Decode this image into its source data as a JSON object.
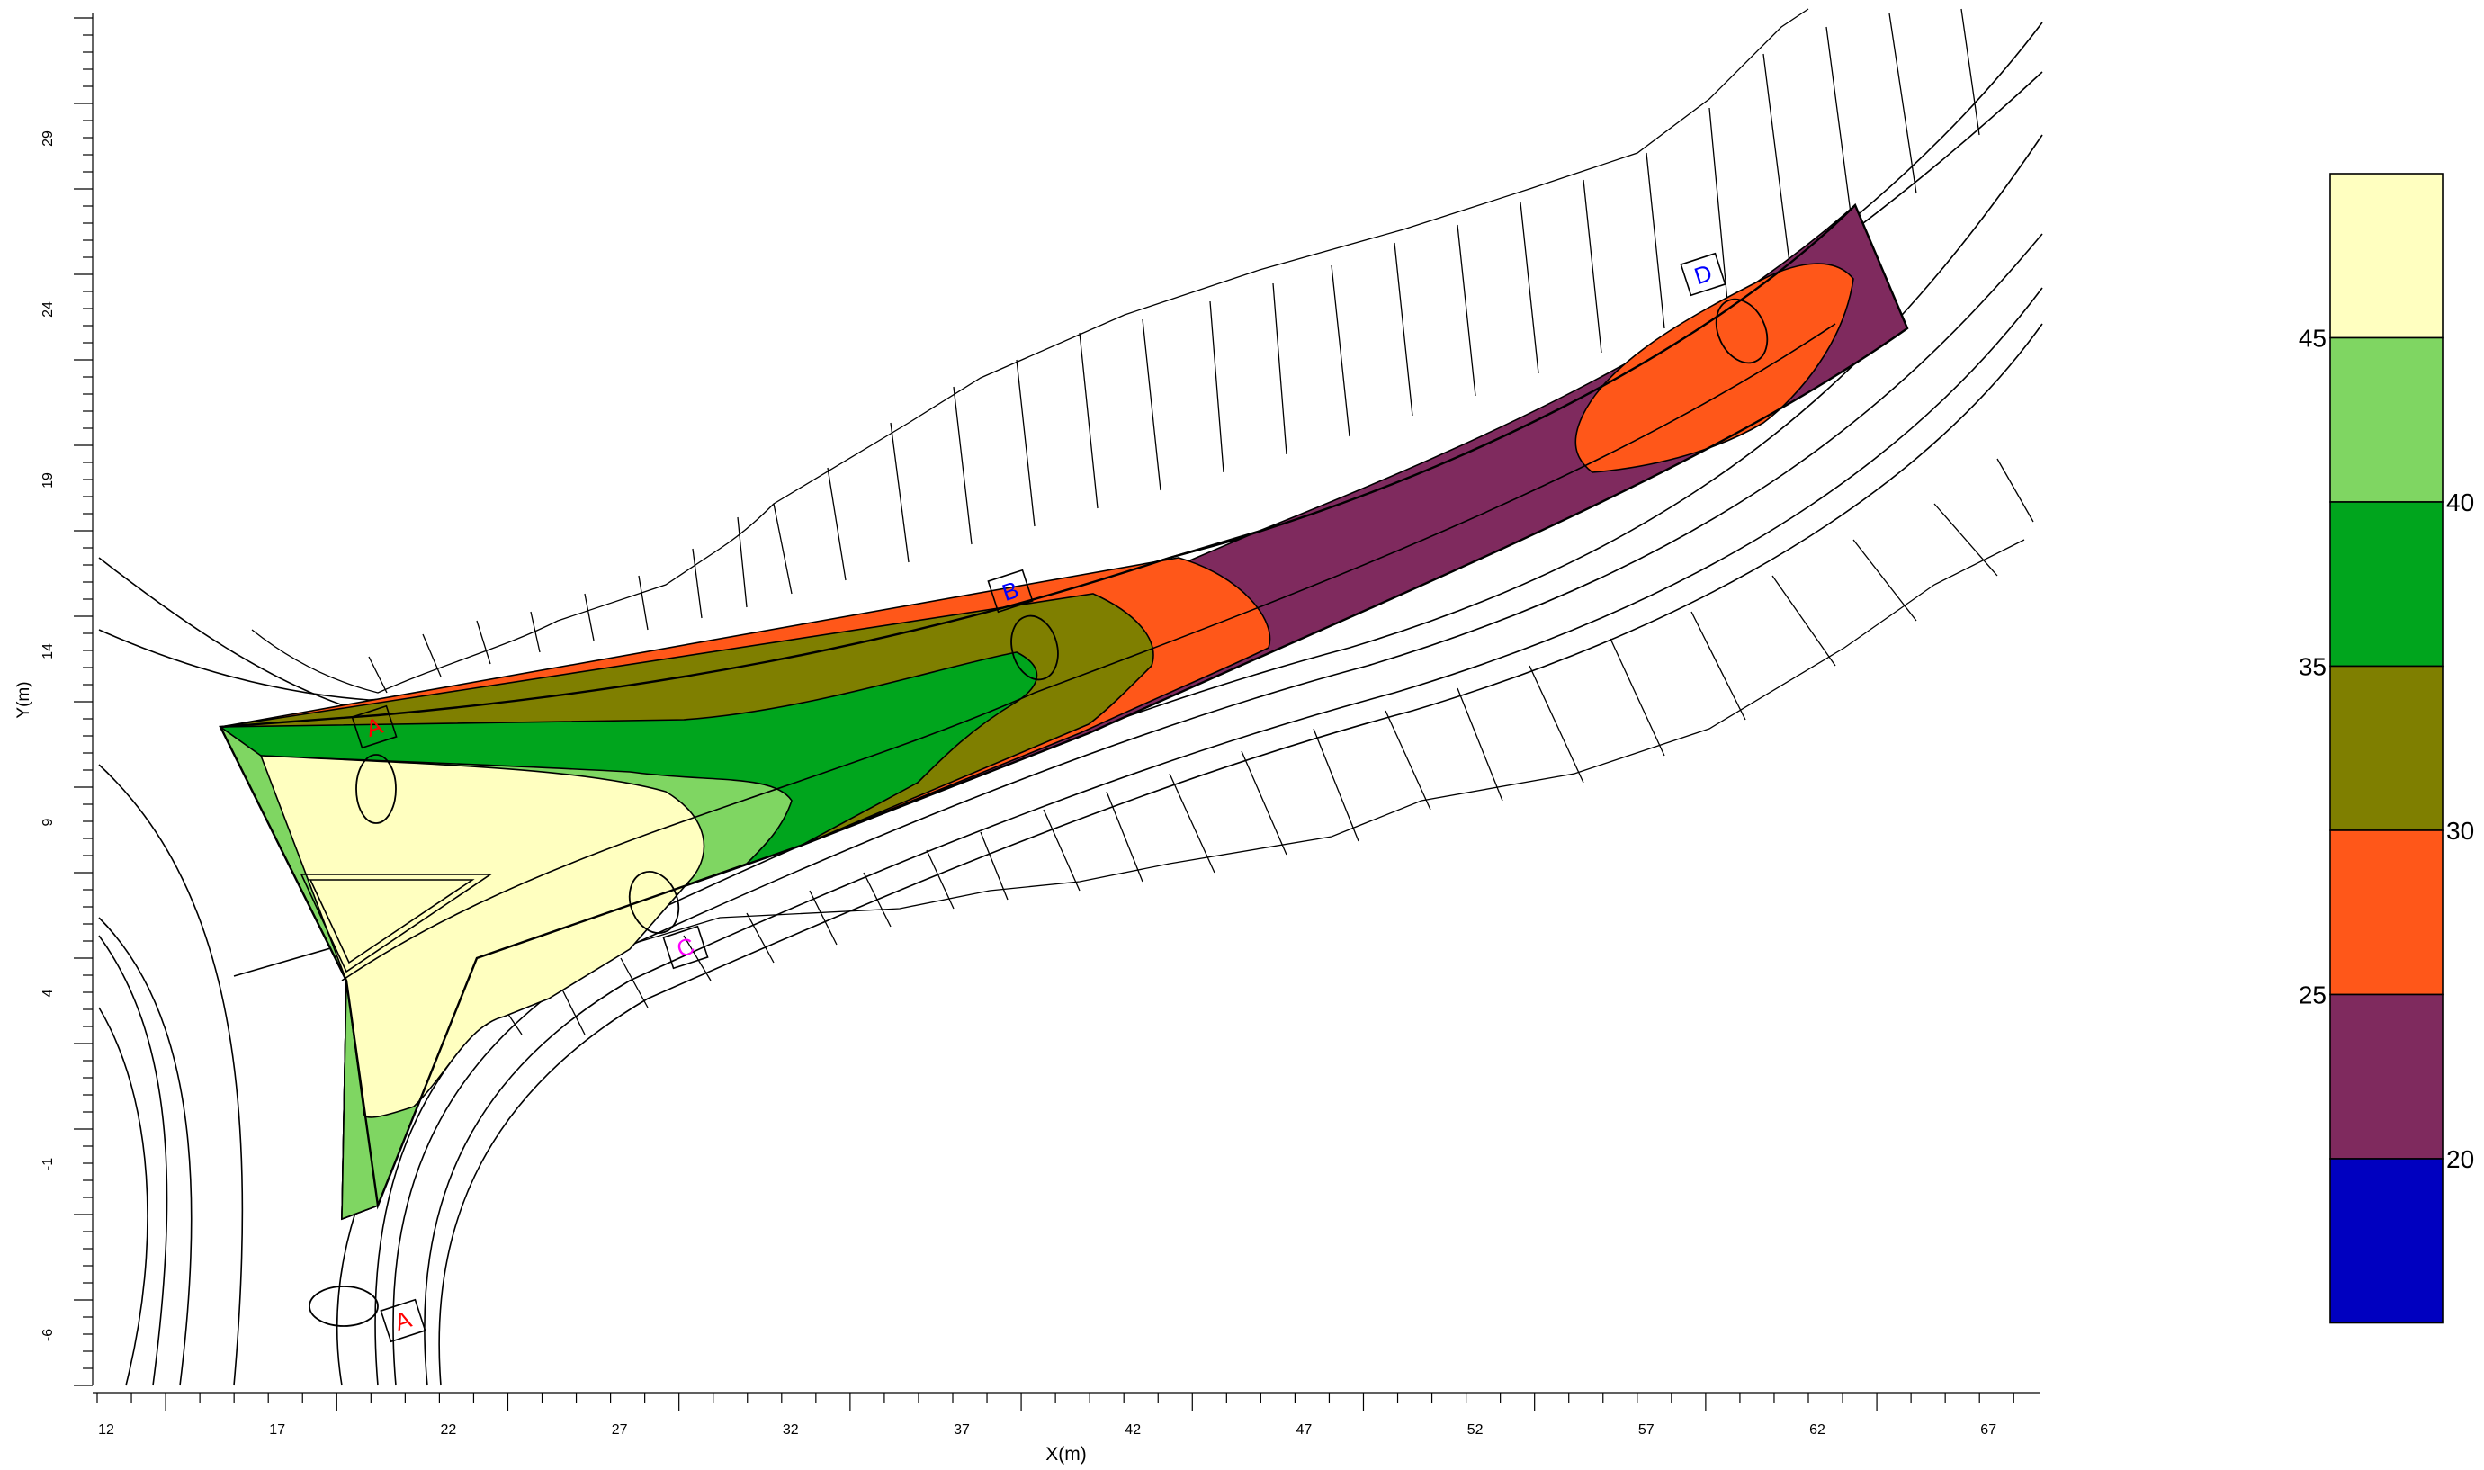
{
  "axes": {
    "xlabel": "X(m)",
    "ylabel": "Y(m)",
    "xticks": [
      "12",
      "17",
      "22",
      "27",
      "32",
      "37",
      "42",
      "47",
      "52",
      "57",
      "62",
      "67"
    ],
    "yticks": [
      "-6",
      "-1",
      "4",
      "9",
      "14",
      "19",
      "24",
      "29"
    ]
  },
  "colors": {
    "band_20_below": "#0000c0",
    "band_20_25": "#7f2a5e",
    "band_25_30": "#ff5719",
    "band_30_35": "#7f7f00",
    "band_35_40": "#00a51d",
    "band_40_45": "#7fd662",
    "band_45_above": "#ffffc0"
  },
  "legend": {
    "labels": [
      "45",
      "40",
      "35",
      "30",
      "25",
      "20"
    ]
  },
  "markers": [
    {
      "id": "A",
      "label": "A",
      "color": "#ff0000"
    },
    {
      "id": "B",
      "label": "B",
      "color": "#0000ff"
    },
    {
      "id": "C",
      "label": "C",
      "color": "#ff00ff"
    },
    {
      "id": "D",
      "label": "D",
      "color": "#0000ff"
    },
    {
      "id": "E",
      "label": "A",
      "color": "#ff0000"
    }
  ]
}
